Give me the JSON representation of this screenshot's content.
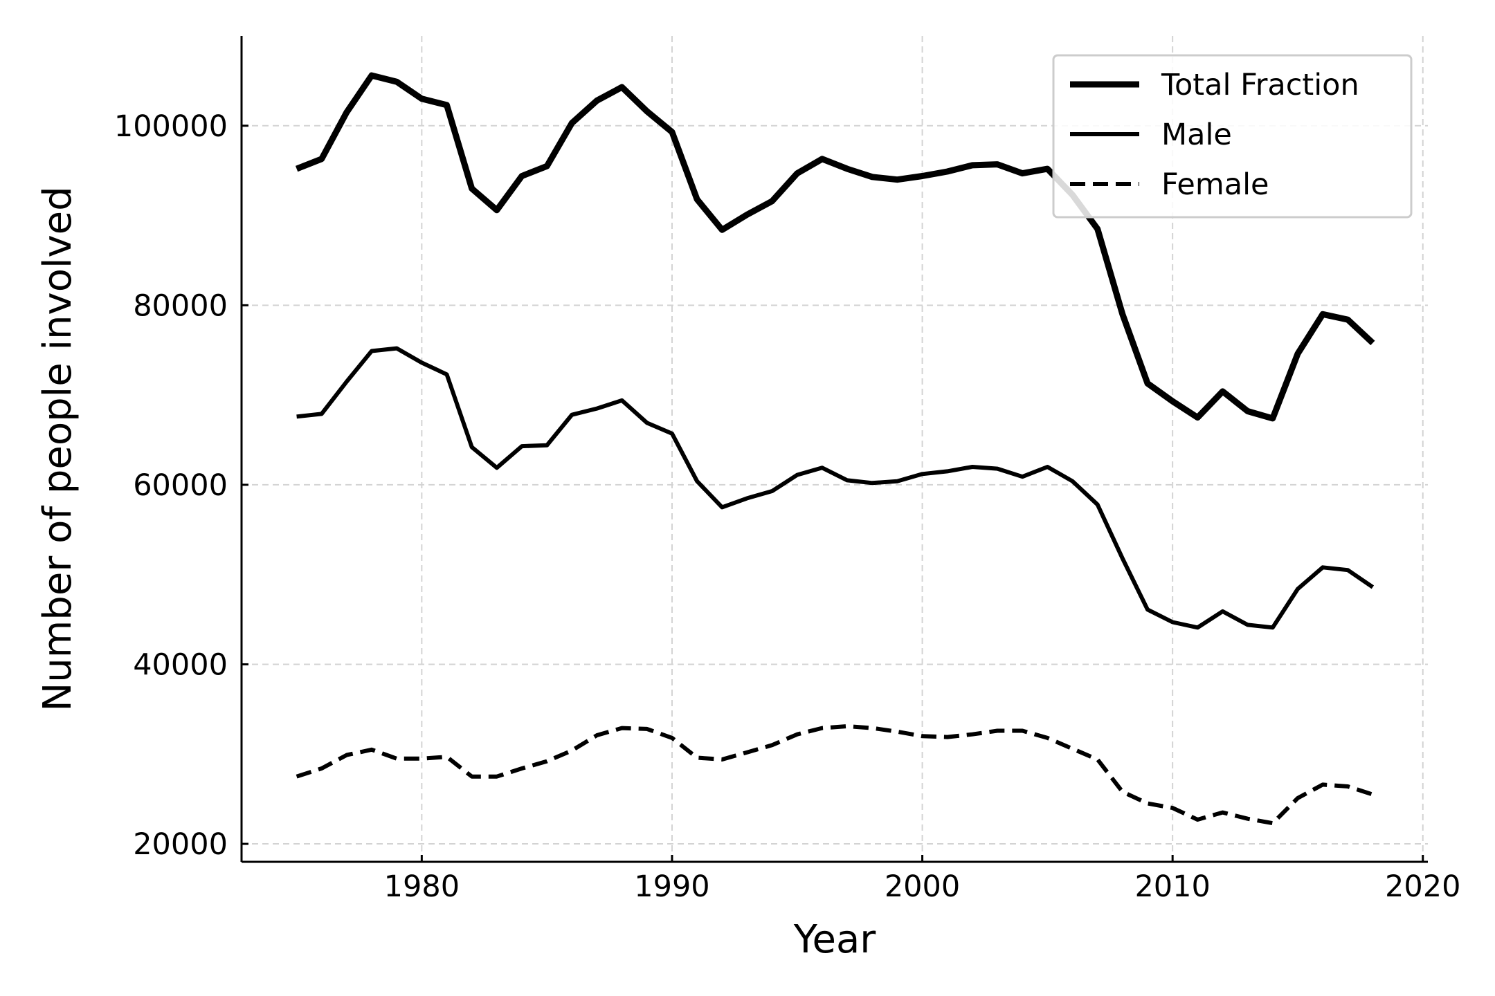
{
  "chart_data": {
    "type": "line",
    "title": "",
    "xlabel": "Year",
    "ylabel": "Number of people involved",
    "xlim": [
      1972.8,
      2020.2
    ],
    "ylim": [
      18000,
      110000
    ],
    "xticks": [
      1980,
      1990,
      2000,
      2010,
      2020
    ],
    "yticks": [
      20000,
      40000,
      60000,
      80000,
      100000
    ],
    "xtick_labels": [
      "1980",
      "1990",
      "2000",
      "2010",
      "2020"
    ],
    "ytick_labels": [
      "20000",
      "40000",
      "60000",
      "80000",
      "100000"
    ],
    "grid": true,
    "legend_position": "top-right",
    "x": [
      1975,
      1976,
      1977,
      1978,
      1979,
      1980,
      1981,
      1982,
      1983,
      1984,
      1985,
      1986,
      1987,
      1988,
      1989,
      1990,
      1991,
      1992,
      1993,
      1994,
      1995,
      1996,
      1997,
      1998,
      1999,
      2000,
      2001,
      2002,
      2003,
      2004,
      2005,
      2006,
      2007,
      2008,
      2009,
      2010,
      2011,
      2012,
      2013,
      2014,
      2015,
      2016,
      2017,
      2018
    ],
    "series": [
      {
        "name": "Total Fraction",
        "style": "solid-thick",
        "color": "#000000",
        "values": [
          95200,
          96300,
          101500,
          105600,
          104900,
          103000,
          102300,
          93000,
          90600,
          94400,
          95500,
          100300,
          102800,
          104300,
          101600,
          99300,
          91800,
          88400,
          90100,
          91600,
          94700,
          96300,
          95200,
          94300,
          94000,
          94400,
          94900,
          95600,
          95700,
          94700,
          95200,
          92300,
          88500,
          79000,
          71300,
          69300,
          67500,
          70400,
          68200,
          67400,
          74600,
          79000,
          78400,
          75800
        ]
      },
      {
        "name": "Male",
        "style": "solid",
        "color": "#000000",
        "values": [
          67600,
          67900,
          71500,
          74900,
          75200,
          73600,
          72300,
          64200,
          61900,
          64300,
          64400,
          67800,
          68500,
          69400,
          66900,
          65700,
          60400,
          57500,
          58500,
          59300,
          61100,
          61900,
          60500,
          60200,
          60400,
          61200,
          61500,
          62000,
          61800,
          60900,
          62000,
          60400,
          57800,
          51800,
          46100,
          44700,
          44100,
          45900,
          44400,
          44100,
          48400,
          50800,
          50500,
          48600
        ]
      },
      {
        "name": "Female",
        "style": "dashed",
        "color": "#000000",
        "values": [
          27500,
          28400,
          29900,
          30500,
          29500,
          29500,
          29700,
          27500,
          27500,
          28400,
          29200,
          30400,
          32100,
          32900,
          32800,
          31800,
          29600,
          29400,
          30200,
          31000,
          32200,
          32900,
          33100,
          32900,
          32500,
          32000,
          31900,
          32200,
          32600,
          32600,
          31800,
          30600,
          29400,
          25800,
          24500,
          24000,
          22700,
          23500,
          22800,
          22300,
          25100,
          26600,
          26400,
          25500
        ]
      }
    ]
  }
}
